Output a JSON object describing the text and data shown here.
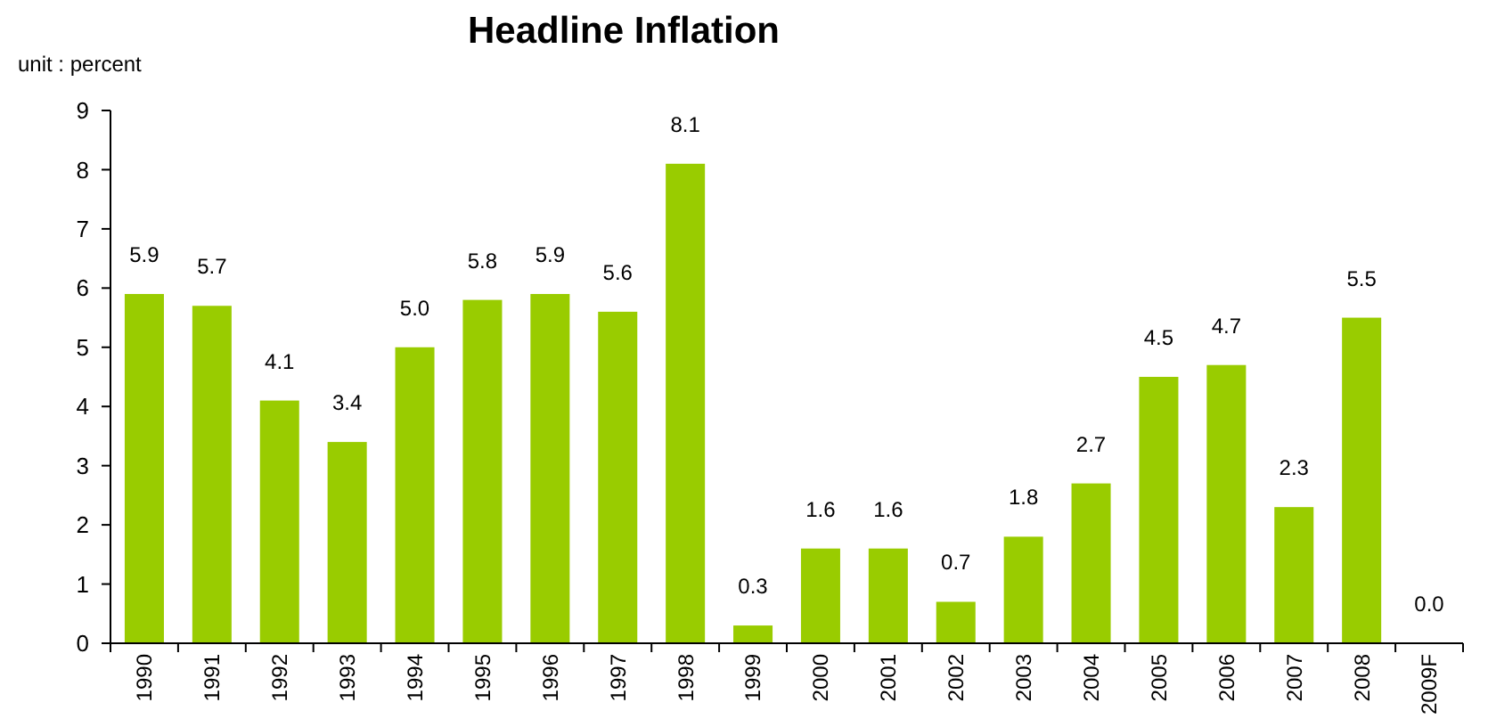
{
  "chart_data": {
    "type": "bar",
    "title": "Headline Inflation",
    "annotations": [
      "unit : percent"
    ],
    "categories": [
      "1990",
      "1991",
      "1992",
      "1993",
      "1994",
      "1995",
      "1996",
      "1997",
      "1998",
      "1999",
      "2000",
      "2001",
      "2002",
      "2003",
      "2004",
      "2005",
      "2006",
      "2007",
      "2008",
      "2009F"
    ],
    "values": [
      5.9,
      5.7,
      4.1,
      3.4,
      5.0,
      5.8,
      5.9,
      5.6,
      8.1,
      0.3,
      1.6,
      1.6,
      0.7,
      1.8,
      2.7,
      4.5,
      4.7,
      2.3,
      5.5,
      0.0
    ],
    "value_labels": [
      "5.9",
      "5.7",
      "4.1",
      "3.4",
      "5.0",
      "5.8",
      "5.9",
      "5.6",
      "8.1",
      "0.3",
      "1.6",
      "1.6",
      "0.7",
      "1.8",
      "2.7",
      "4.5",
      "4.7",
      "2.3",
      "5.5",
      "0.0"
    ],
    "color": "#99cc00",
    "ylim": [
      0,
      9
    ],
    "yticks": [
      0,
      1,
      2,
      3,
      4,
      5,
      6,
      7,
      8,
      9
    ],
    "grid": false
  }
}
